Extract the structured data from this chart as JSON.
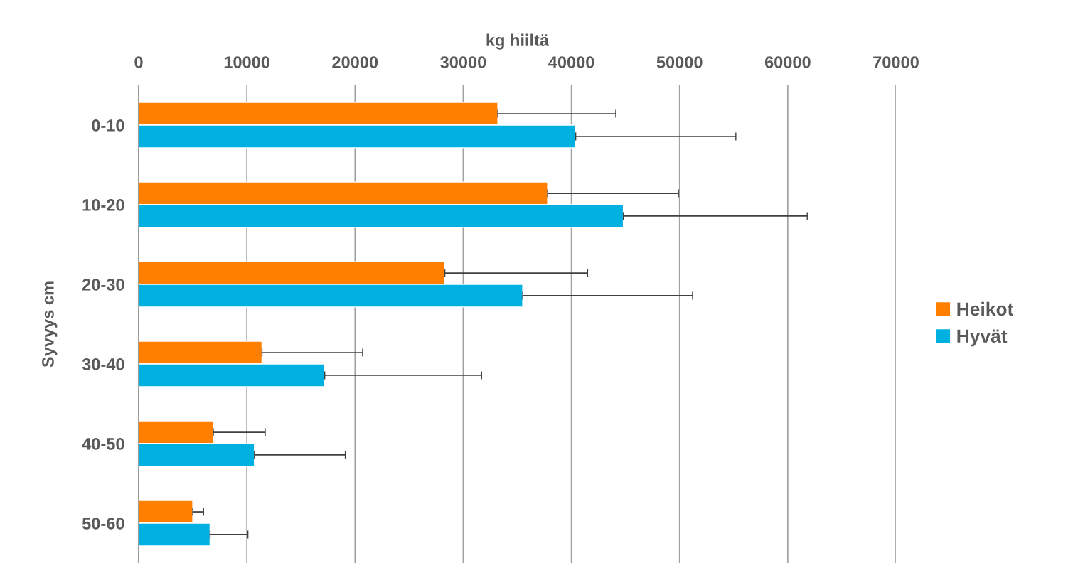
{
  "chart_data": {
    "type": "bar",
    "orientation": "horizontal",
    "xlabel": "kg hiiltä",
    "ylabel": "Syvyys cm",
    "categories": [
      "0-10",
      "10-20",
      "20-30",
      "30-40",
      "40-50",
      "50-60"
    ],
    "series": [
      {
        "name": "Heikot",
        "color": "#ff8000",
        "values": [
          33200,
          37800,
          28300,
          11400,
          6900,
          5000
        ],
        "errors": [
          [
            33200,
            44100
          ],
          [
            37800,
            49900
          ],
          [
            28300,
            41500
          ],
          [
            11400,
            20700
          ],
          [
            6900,
            11700
          ],
          [
            5000,
            6000
          ]
        ]
      },
      {
        "name": "Hyvät",
        "color": "#00b0e0",
        "values": [
          40400,
          44800,
          35500,
          17200,
          10700,
          6600
        ],
        "errors": [
          [
            40400,
            55200
          ],
          [
            44800,
            61800
          ],
          [
            35500,
            51200
          ],
          [
            17200,
            31700
          ],
          [
            10700,
            19100
          ],
          [
            6600,
            10100
          ]
        ]
      }
    ],
    "xlim": [
      0,
      70000
    ],
    "xticks": [
      0,
      10000,
      20000,
      30000,
      40000,
      50000,
      60000,
      70000
    ],
    "grid": "x",
    "legend": "right"
  }
}
